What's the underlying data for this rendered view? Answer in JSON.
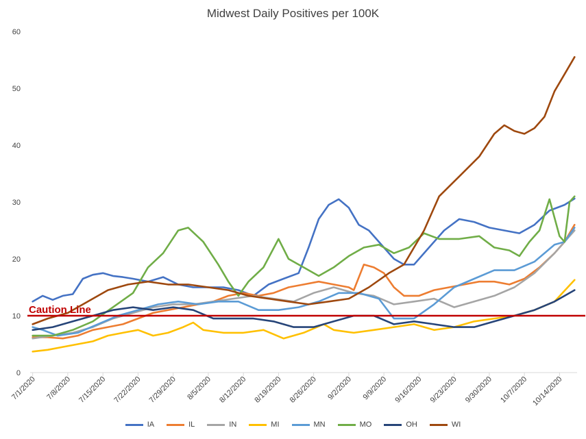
{
  "chart_data": {
    "type": "line",
    "title": "Midwest Daily Positives per 100K",
    "xlabel": "",
    "ylabel": "",
    "ylim": [
      0,
      60
    ],
    "yticks": [
      0,
      10,
      20,
      30,
      40,
      50,
      60
    ],
    "x_range": [
      "7/1/2020",
      "10/17/2020"
    ],
    "xticks": [
      "7/1/2020",
      "7/8/2020",
      "7/15/2020",
      "7/22/2020",
      "7/29/2020",
      "8/5/2020",
      "8/12/2020",
      "8/19/2020",
      "8/26/2020",
      "9/2/2020",
      "9/9/2020",
      "9/16/2020",
      "9/23/2020",
      "9/30/2020",
      "10/7/2020",
      "10/14/2020"
    ],
    "grid": false,
    "legend_position": "bottom",
    "reference_line": {
      "label": "Caution Line",
      "value": 10,
      "color": "#c00000"
    },
    "series": [
      {
        "name": "IA",
        "color": "#4472c4",
        "points": [
          [
            "7/1/2020",
            12.5
          ],
          [
            "7/3/2020",
            13.5
          ],
          [
            "7/5/2020",
            12.8
          ],
          [
            "7/7/2020",
            13.5
          ],
          [
            "7/9/2020",
            13.8
          ],
          [
            "7/11/2020",
            16.5
          ],
          [
            "7/13/2020",
            17.2
          ],
          [
            "7/15/2020",
            17.5
          ],
          [
            "7/17/2020",
            17.0
          ],
          [
            "7/19/2020",
            16.8
          ],
          [
            "7/21/2020",
            16.5
          ],
          [
            "7/24/2020",
            16.0
          ],
          [
            "7/27/2020",
            16.8
          ],
          [
            "7/30/2020",
            15.5
          ],
          [
            "8/2/2020",
            15.0
          ],
          [
            "8/5/2020",
            15.0
          ],
          [
            "8/8/2020",
            15.0
          ],
          [
            "8/11/2020",
            14.5
          ],
          [
            "8/14/2020",
            13.5
          ],
          [
            "8/17/2020",
            15.5
          ],
          [
            "8/20/2020",
            16.5
          ],
          [
            "8/23/2020",
            17.5
          ],
          [
            "8/25/2020",
            22.0
          ],
          [
            "8/27/2020",
            27.0
          ],
          [
            "8/29/2020",
            29.5
          ],
          [
            "8/31/2020",
            30.5
          ],
          [
            "9/2/2020",
            29.0
          ],
          [
            "9/4/2020",
            26.0
          ],
          [
            "9/6/2020",
            25.0
          ],
          [
            "9/9/2020",
            22.0
          ],
          [
            "9/11/2020",
            20.0
          ],
          [
            "9/13/2020",
            19.0
          ],
          [
            "9/15/2020",
            19.0
          ],
          [
            "9/18/2020",
            22.0
          ],
          [
            "9/21/2020",
            25.0
          ],
          [
            "9/24/2020",
            27.0
          ],
          [
            "9/27/2020",
            26.5
          ],
          [
            "9/30/2020",
            25.5
          ],
          [
            "10/3/2020",
            25.0
          ],
          [
            "10/6/2020",
            24.5
          ],
          [
            "10/9/2020",
            26.0
          ],
          [
            "10/12/2020",
            28.5
          ],
          [
            "10/15/2020",
            29.5
          ],
          [
            "10/17/2020",
            30.6
          ]
        ]
      },
      {
        "name": "IL",
        "color": "#ed7d31",
        "points": [
          [
            "7/1/2020",
            6.2
          ],
          [
            "7/4/2020",
            6.2
          ],
          [
            "7/7/2020",
            6.0
          ],
          [
            "7/10/2020",
            6.5
          ],
          [
            "7/13/2020",
            7.5
          ],
          [
            "7/16/2020",
            8.0
          ],
          [
            "7/19/2020",
            8.5
          ],
          [
            "7/22/2020",
            9.5
          ],
          [
            "7/25/2020",
            10.5
          ],
          [
            "7/28/2020",
            11.0
          ],
          [
            "7/31/2020",
            11.5
          ],
          [
            "8/3/2020",
            12.0
          ],
          [
            "8/6/2020",
            12.5
          ],
          [
            "8/9/2020",
            13.5
          ],
          [
            "8/12/2020",
            14.0
          ],
          [
            "8/15/2020",
            13.5
          ],
          [
            "8/18/2020",
            14.0
          ],
          [
            "8/21/2020",
            15.0
          ],
          [
            "8/24/2020",
            15.5
          ],
          [
            "8/27/2020",
            16.0
          ],
          [
            "8/30/2020",
            15.5
          ],
          [
            "9/2/2020",
            15.0
          ],
          [
            "9/3/2020",
            14.5
          ],
          [
            "9/5/2020",
            19.0
          ],
          [
            "9/7/2020",
            18.5
          ],
          [
            "9/9/2020",
            17.5
          ],
          [
            "9/11/2020",
            15.0
          ],
          [
            "9/13/2020",
            13.5
          ],
          [
            "9/16/2020",
            13.5
          ],
          [
            "9/19/2020",
            14.5
          ],
          [
            "9/22/2020",
            15.0
          ],
          [
            "9/25/2020",
            15.5
          ],
          [
            "9/28/2020",
            16.0
          ],
          [
            "10/1/2020",
            16.0
          ],
          [
            "10/4/2020",
            15.5
          ],
          [
            "10/7/2020",
            16.5
          ],
          [
            "10/10/2020",
            18.5
          ],
          [
            "10/13/2020",
            21.0
          ],
          [
            "10/15/2020",
            23.0
          ],
          [
            "10/17/2020",
            26.0
          ]
        ]
      },
      {
        "name": "IN",
        "color": "#a5a5a5",
        "points": [
          [
            "7/1/2020",
            6.0
          ],
          [
            "7/5/2020",
            6.5
          ],
          [
            "7/9/2020",
            7.0
          ],
          [
            "7/13/2020",
            8.0
          ],
          [
            "7/17/2020",
            9.5
          ],
          [
            "7/21/2020",
            10.5
          ],
          [
            "7/25/2020",
            11.5
          ],
          [
            "7/29/2020",
            12.0
          ],
          [
            "8/2/2020",
            12.0
          ],
          [
            "8/6/2020",
            12.5
          ],
          [
            "8/10/2020",
            13.0
          ],
          [
            "8/14/2020",
            13.5
          ],
          [
            "8/18/2020",
            13.0
          ],
          [
            "8/22/2020",
            12.5
          ],
          [
            "8/26/2020",
            14.0
          ],
          [
            "8/30/2020",
            15.0
          ],
          [
            "9/3/2020",
            14.0
          ],
          [
            "9/7/2020",
            13.5
          ],
          [
            "9/11/2020",
            12.0
          ],
          [
            "9/15/2020",
            12.5
          ],
          [
            "9/19/2020",
            13.0
          ],
          [
            "9/23/2020",
            11.5
          ],
          [
            "9/27/2020",
            12.5
          ],
          [
            "10/1/2020",
            13.5
          ],
          [
            "10/5/2020",
            15.0
          ],
          [
            "10/9/2020",
            17.5
          ],
          [
            "10/13/2020",
            21.0
          ],
          [
            "10/17/2020",
            25.0
          ]
        ]
      },
      {
        "name": "MI",
        "color": "#ffc000",
        "points": [
          [
            "7/1/2020",
            3.7
          ],
          [
            "7/4/2020",
            4.0
          ],
          [
            "7/7/2020",
            4.5
          ],
          [
            "7/10/2020",
            5.0
          ],
          [
            "7/13/2020",
            5.5
          ],
          [
            "7/16/2020",
            6.5
          ],
          [
            "7/19/2020",
            7.0
          ],
          [
            "7/22/2020",
            7.5
          ],
          [
            "7/25/2020",
            6.5
          ],
          [
            "7/28/2020",
            7.0
          ],
          [
            "7/31/2020",
            8.0
          ],
          [
            "8/2/2020",
            8.8
          ],
          [
            "8/4/2020",
            7.5
          ],
          [
            "8/8/2020",
            7.0
          ],
          [
            "8/12/2020",
            7.0
          ],
          [
            "8/16/2020",
            7.5
          ],
          [
            "8/20/2020",
            6.0
          ],
          [
            "8/24/2020",
            7.0
          ],
          [
            "8/28/2020",
            8.5
          ],
          [
            "8/30/2020",
            7.5
          ],
          [
            "9/3/2020",
            7.0
          ],
          [
            "9/7/2020",
            7.5
          ],
          [
            "9/11/2020",
            8.0
          ],
          [
            "9/15/2020",
            8.5
          ],
          [
            "9/19/2020",
            7.5
          ],
          [
            "9/23/2020",
            8.0
          ],
          [
            "9/27/2020",
            9.0
          ],
          [
            "10/1/2020",
            9.5
          ],
          [
            "10/5/2020",
            10.0
          ],
          [
            "10/9/2020",
            11.0
          ],
          [
            "10/13/2020",
            12.5
          ],
          [
            "10/17/2020",
            16.3
          ]
        ]
      },
      {
        "name": "MN",
        "color": "#5b9bd5",
        "points": [
          [
            "7/1/2020",
            8.0
          ],
          [
            "7/3/2020",
            7.5
          ],
          [
            "7/6/2020",
            6.5
          ],
          [
            "7/10/2020",
            7.0
          ],
          [
            "7/14/2020",
            8.5
          ],
          [
            "7/18/2020",
            10.0
          ],
          [
            "7/22/2020",
            11.0
          ],
          [
            "7/26/2020",
            12.0
          ],
          [
            "7/30/2020",
            12.5
          ],
          [
            "8/3/2020",
            12.0
          ],
          [
            "8/7/2020",
            12.5
          ],
          [
            "8/11/2020",
            12.5
          ],
          [
            "8/15/2020",
            11.0
          ],
          [
            "8/19/2020",
            11.0
          ],
          [
            "8/23/2020",
            11.5
          ],
          [
            "8/27/2020",
            12.5
          ],
          [
            "8/31/2020",
            14.0
          ],
          [
            "9/4/2020",
            14.0
          ],
          [
            "9/8/2020",
            13.0
          ],
          [
            "9/11/2020",
            9.5
          ],
          [
            "9/15/2020",
            9.5
          ],
          [
            "9/19/2020",
            12.0
          ],
          [
            "9/23/2020",
            15.0
          ],
          [
            "9/27/2020",
            16.5
          ],
          [
            "10/1/2020",
            18.0
          ],
          [
            "10/5/2020",
            18.0
          ],
          [
            "10/9/2020",
            19.5
          ],
          [
            "10/13/2020",
            22.5
          ],
          [
            "10/15/2020",
            23.0
          ],
          [
            "10/17/2020",
            25.5
          ]
        ]
      },
      {
        "name": "MO",
        "color": "#70ad47",
        "points": [
          [
            "7/1/2020",
            6.5
          ],
          [
            "7/5/2020",
            6.5
          ],
          [
            "7/9/2020",
            7.5
          ],
          [
            "7/13/2020",
            9.0
          ],
          [
            "7/17/2020",
            11.5
          ],
          [
            "7/21/2020",
            14.0
          ],
          [
            "7/24/2020",
            18.5
          ],
          [
            "7/27/2020",
            21.0
          ],
          [
            "7/30/2020",
            25.0
          ],
          [
            "8/1/2020",
            25.5
          ],
          [
            "8/4/2020",
            23.0
          ],
          [
            "8/7/2020",
            19.0
          ],
          [
            "8/9/2020",
            16.0
          ],
          [
            "8/11/2020",
            13.5
          ],
          [
            "8/13/2020",
            16.0
          ],
          [
            "8/16/2020",
            18.5
          ],
          [
            "8/19/2020",
            23.5
          ],
          [
            "8/21/2020",
            20.0
          ],
          [
            "8/24/2020",
            18.5
          ],
          [
            "8/27/2020",
            17.0
          ],
          [
            "8/30/2020",
            18.5
          ],
          [
            "9/2/2020",
            20.5
          ],
          [
            "9/5/2020",
            22.0
          ],
          [
            "9/8/2020",
            22.5
          ],
          [
            "9/11/2020",
            21.0
          ],
          [
            "9/14/2020",
            22.0
          ],
          [
            "9/17/2020",
            24.5
          ],
          [
            "9/20/2020",
            23.5
          ],
          [
            "9/24/2020",
            23.5
          ],
          [
            "9/28/2020",
            24.0
          ],
          [
            "10/1/2020",
            22.0
          ],
          [
            "10/4/2020",
            21.5
          ],
          [
            "10/6/2020",
            20.5
          ],
          [
            "10/8/2020",
            23.0
          ],
          [
            "10/10/2020",
            25.0
          ],
          [
            "10/12/2020",
            30.5
          ],
          [
            "10/14/2020",
            24.0
          ],
          [
            "10/15/2020",
            23.0
          ],
          [
            "10/16/2020",
            30.0
          ],
          [
            "10/17/2020",
            31.0
          ]
        ]
      },
      {
        "name": "OH",
        "color": "#264478",
        "points": [
          [
            "7/1/2020",
            7.5
          ],
          [
            "7/5/2020",
            8.0
          ],
          [
            "7/9/2020",
            9.0
          ],
          [
            "7/13/2020",
            10.0
          ],
          [
            "7/17/2020",
            11.0
          ],
          [
            "7/21/2020",
            11.5
          ],
          [
            "7/25/2020",
            11.0
          ],
          [
            "7/29/2020",
            11.5
          ],
          [
            "8/2/2020",
            11.0
          ],
          [
            "8/6/2020",
            9.5
          ],
          [
            "8/10/2020",
            9.5
          ],
          [
            "8/14/2020",
            9.5
          ],
          [
            "8/18/2020",
            9.0
          ],
          [
            "8/22/2020",
            8.0
          ],
          [
            "8/26/2020",
            8.0
          ],
          [
            "8/30/2020",
            9.0
          ],
          [
            "9/3/2020",
            10.0
          ],
          [
            "9/7/2020",
            10.0
          ],
          [
            "9/11/2020",
            8.5
          ],
          [
            "9/15/2020",
            9.0
          ],
          [
            "9/19/2020",
            8.5
          ],
          [
            "9/23/2020",
            8.0
          ],
          [
            "9/27/2020",
            8.0
          ],
          [
            "10/1/2020",
            9.0
          ],
          [
            "10/5/2020",
            10.0
          ],
          [
            "10/9/2020",
            11.0
          ],
          [
            "10/13/2020",
            12.5
          ],
          [
            "10/17/2020",
            14.5
          ]
        ]
      },
      {
        "name": "WI",
        "color": "#9e480e",
        "points": [
          [
            "7/1/2020",
            8.5
          ],
          [
            "7/4/2020",
            9.5
          ],
          [
            "7/8/2020",
            10.5
          ],
          [
            "7/12/2020",
            12.5
          ],
          [
            "7/16/2020",
            14.5
          ],
          [
            "7/20/2020",
            15.5
          ],
          [
            "7/24/2020",
            16.0
          ],
          [
            "7/28/2020",
            15.5
          ],
          [
            "8/1/2020",
            15.5
          ],
          [
            "8/5/2020",
            15.0
          ],
          [
            "8/9/2020",
            14.5
          ],
          [
            "8/13/2020",
            13.5
          ],
          [
            "8/17/2020",
            13.0
          ],
          [
            "8/21/2020",
            12.5
          ],
          [
            "8/25/2020",
            12.0
          ],
          [
            "8/29/2020",
            12.5
          ],
          [
            "9/2/2020",
            13.0
          ],
          [
            "9/6/2020",
            15.0
          ],
          [
            "9/10/2020",
            17.5
          ],
          [
            "9/13/2020",
            19.0
          ],
          [
            "9/17/2020",
            25.0
          ],
          [
            "9/20/2020",
            31.0
          ],
          [
            "9/24/2020",
            34.5
          ],
          [
            "9/28/2020",
            38.0
          ],
          [
            "10/1/2020",
            42.0
          ],
          [
            "10/3/2020",
            43.5
          ],
          [
            "10/5/2020",
            42.5
          ],
          [
            "10/7/2020",
            42.0
          ],
          [
            "10/9/2020",
            43.0
          ],
          [
            "10/11/2020",
            45.0
          ],
          [
            "10/13/2020",
            49.5
          ],
          [
            "10/15/2020",
            52.5
          ],
          [
            "10/17/2020",
            55.5
          ]
        ]
      }
    ]
  }
}
